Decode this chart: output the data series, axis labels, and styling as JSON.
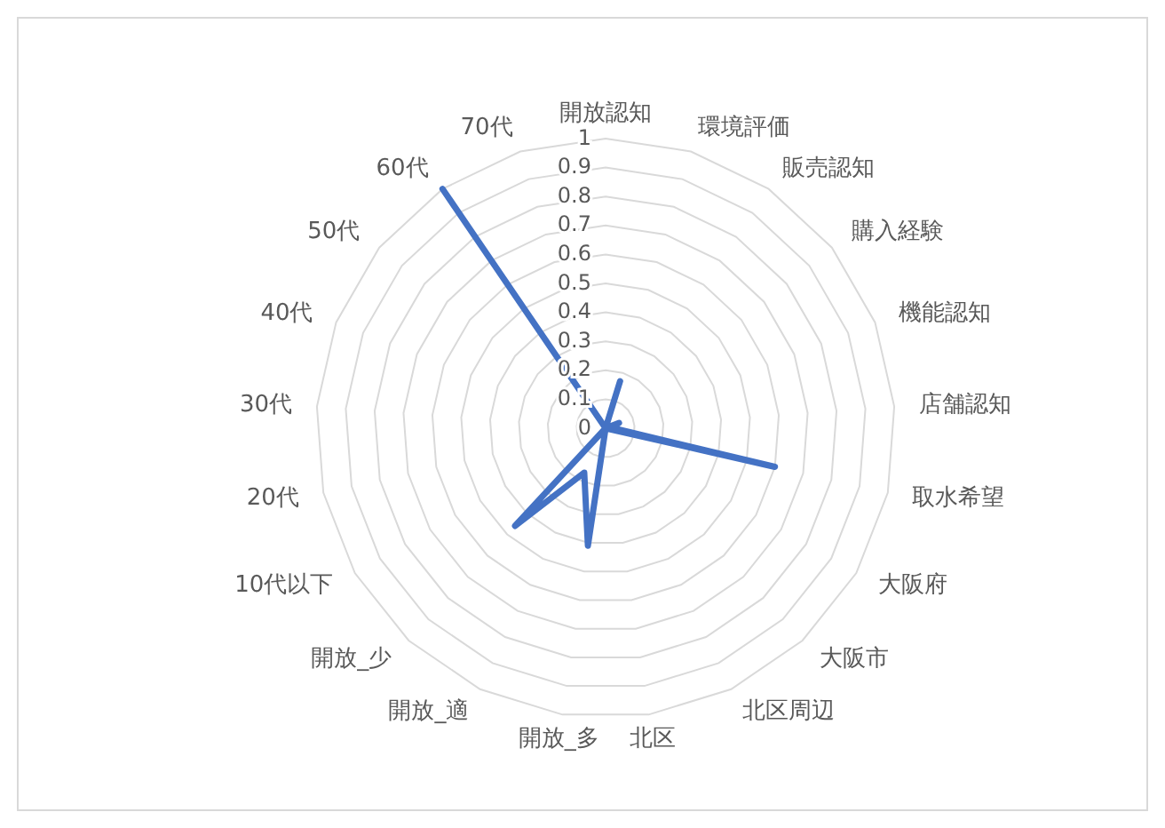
{
  "chart_data": {
    "type": "radar",
    "categories": [
      "開放認知",
      "環境評価",
      "販売認知",
      "購入経験",
      "機能認知",
      "店舗認知",
      "取水希望",
      "大阪府",
      "大阪市",
      "北区周辺",
      "北区",
      "開放_多",
      "開放_適",
      "開放_少",
      "10代以下",
      "20代",
      "30代",
      "40代",
      "50代",
      "60代",
      "70代"
    ],
    "series": [
      {
        "color": "#4472c4",
        "values": [
          0,
          0.17,
          0,
          0,
          0.05,
          0.02,
          0.6,
          0,
          0,
          0,
          0,
          0.41,
          0.17,
          0.46,
          0,
          0,
          0,
          0,
          0,
          1.0,
          0
        ]
      }
    ],
    "ylim": [
      0,
      1
    ],
    "yticks": [
      0,
      0.1,
      0.2,
      0.3,
      0.4,
      0.5,
      0.6,
      0.7,
      0.8,
      0.9,
      1
    ],
    "grid": true,
    "marker": "none",
    "line_style": "solid"
  }
}
